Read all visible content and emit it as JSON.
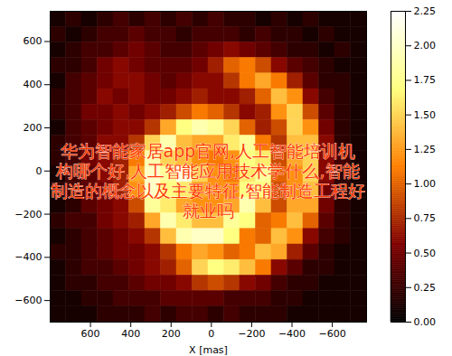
{
  "chart_data": {
    "type": "heatmap",
    "xlabel": "X [mas]",
    "xlim": [
      800,
      -770
    ],
    "ylim": [
      -700,
      740
    ],
    "xticks": [
      600,
      400,
      200,
      0,
      -200,
      -400,
      -600
    ],
    "yticks": [
      -600,
      -400,
      -200,
      0,
      200,
      400,
      600
    ],
    "cells": [
      [
        0.1,
        0.2,
        0.1,
        0.2,
        0.3,
        0.2,
        0.3,
        0.2,
        0.3,
        0.2,
        0.3,
        0.2,
        0.2,
        0.1,
        0.2,
        0.1,
        0.2,
        0.1,
        0.1,
        0.1
      ],
      [
        0.2,
        0.1,
        0.2,
        0.3,
        0.3,
        0.4,
        0.3,
        0.3,
        0.2,
        0.3,
        0.3,
        0.3,
        0.2,
        0.3,
        0.2,
        0.2,
        0.1,
        0.2,
        0.1,
        0.1
      ],
      [
        0.1,
        0.2,
        0.3,
        0.3,
        0.4,
        0.5,
        0.4,
        0.3,
        0.3,
        0.4,
        0.5,
        0.6,
        0.5,
        0.4,
        0.3,
        0.2,
        0.2,
        0.1,
        0.2,
        0.1
      ],
      [
        0.2,
        0.2,
        0.3,
        0.5,
        0.6,
        0.5,
        0.4,
        0.4,
        0.4,
        0.5,
        0.7,
        1.0,
        1.1,
        0.9,
        0.6,
        0.4,
        0.3,
        0.2,
        0.1,
        0.1
      ],
      [
        0.1,
        0.3,
        0.4,
        0.5,
        0.6,
        0.6,
        0.5,
        0.4,
        0.5,
        0.6,
        0.6,
        0.8,
        1.1,
        1.3,
        1.1,
        0.7,
        0.4,
        0.2,
        0.2,
        0.1
      ],
      [
        0.2,
        0.3,
        0.4,
        0.6,
        0.5,
        0.6,
        0.5,
        0.5,
        0.6,
        0.7,
        0.6,
        0.6,
        0.7,
        1.0,
        1.4,
        1.2,
        0.6,
        0.3,
        0.2,
        0.1
      ],
      [
        0.2,
        0.3,
        0.5,
        0.5,
        0.6,
        0.5,
        0.6,
        0.7,
        0.9,
        1.1,
        1.0,
        0.8,
        0.6,
        0.7,
        1.2,
        1.5,
        0.9,
        0.4,
        0.2,
        0.1
      ],
      [
        0.1,
        0.3,
        0.4,
        0.5,
        0.6,
        0.6,
        0.8,
        1.3,
        1.7,
        1.9,
        1.8,
        1.5,
        1.0,
        0.7,
        0.9,
        1.5,
        1.2,
        0.5,
        0.2,
        0.1
      ],
      [
        0.2,
        0.3,
        0.4,
        0.6,
        0.6,
        0.8,
        1.5,
        1.9,
        1.4,
        1.3,
        1.3,
        1.6,
        1.8,
        1.1,
        0.8,
        1.4,
        1.4,
        0.6,
        0.2,
        0.1
      ],
      [
        0.2,
        0.3,
        0.5,
        0.6,
        0.7,
        1.1,
        1.9,
        1.5,
        1.4,
        1.2,
        1.1,
        1.2,
        1.7,
        1.6,
        0.9,
        1.3,
        1.5,
        0.6,
        0.3,
        0.1
      ],
      [
        0.1,
        0.3,
        0.4,
        0.6,
        0.7,
        1.3,
        2.0,
        1.8,
        2.1,
        1.5,
        1.2,
        1.1,
        1.6,
        1.8,
        1.0,
        1.2,
        1.5,
        0.6,
        0.2,
        0.1
      ],
      [
        0.2,
        0.3,
        0.4,
        0.5,
        0.7,
        1.2,
        2.0,
        1.7,
        1.6,
        1.3,
        1.2,
        1.2,
        1.7,
        1.7,
        0.9,
        1.2,
        1.4,
        0.5,
        0.2,
        0.1
      ],
      [
        0.1,
        0.2,
        0.4,
        0.5,
        0.6,
        0.9,
        1.8,
        1.6,
        1.3,
        1.2,
        1.2,
        1.3,
        1.9,
        1.4,
        0.9,
        1.3,
        1.3,
        0.5,
        0.2,
        0.1
      ],
      [
        0.2,
        0.3,
        0.3,
        0.5,
        0.6,
        0.7,
        1.3,
        1.9,
        1.6,
        1.4,
        1.4,
        1.8,
        1.7,
        1.0,
        1.1,
        1.4,
        1.0,
        0.4,
        0.2,
        0.1
      ],
      [
        0.1,
        0.2,
        0.3,
        0.4,
        0.5,
        0.6,
        0.8,
        1.4,
        1.9,
        2.0,
        2.0,
        1.7,
        1.1,
        1.0,
        1.4,
        1.2,
        0.6,
        0.3,
        0.2,
        0.1
      ],
      [
        0.2,
        0.2,
        0.3,
        0.4,
        0.5,
        0.5,
        0.6,
        0.8,
        1.1,
        1.3,
        1.2,
        1.0,
        1.1,
        1.4,
        1.3,
        0.7,
        0.4,
        0.2,
        0.1,
        0.1
      ],
      [
        0.1,
        0.2,
        0.3,
        0.3,
        0.4,
        0.5,
        0.6,
        0.7,
        1.0,
        1.5,
        1.7,
        1.6,
        1.4,
        1.1,
        0.6,
        0.4,
        0.2,
        0.2,
        0.1,
        0.1
      ],
      [
        0.1,
        0.2,
        0.2,
        0.3,
        0.3,
        0.4,
        0.5,
        0.5,
        0.6,
        0.8,
        0.9,
        0.8,
        0.6,
        0.5,
        0.3,
        0.2,
        0.2,
        0.1,
        0.1,
        0.1
      ],
      [
        0.1,
        0.1,
        0.2,
        0.2,
        0.3,
        0.3,
        0.3,
        0.4,
        0.4,
        0.4,
        0.4,
        0.3,
        0.3,
        0.3,
        0.2,
        0.2,
        0.1,
        0.1,
        0.1,
        0.1
      ],
      [
        0.1,
        0.1,
        0.1,
        0.2,
        0.2,
        0.2,
        0.3,
        0.2,
        0.3,
        0.3,
        0.2,
        0.3,
        0.2,
        0.2,
        0.2,
        0.1,
        0.1,
        0.1,
        0.1,
        0.1
      ]
    ],
    "colorbar": {
      "range": [
        0,
        2.25
      ],
      "ticks": [
        {
          "value": 0,
          "label": "0.00"
        },
        {
          "value": 0.25,
          "label": "0.25"
        },
        {
          "value": 0.5,
          "label": "0.50"
        },
        {
          "value": 0.75,
          "label": "0.75"
        },
        {
          "value": 1,
          "label": "1.00"
        },
        {
          "value": 1.25,
          "label": "1.25"
        },
        {
          "value": 1.5,
          "label": "1.50"
        },
        {
          "value": 1.75,
          "label": "1.75"
        },
        {
          "value": 2,
          "label": "2.00"
        },
        {
          "value": 2.25,
          "label": "2.25"
        }
      ]
    },
    "annotations": [
      "华为智能家居app官网,人工智能培训机",
      "构哪个好,人工智能应用技术学什么,智能",
      "制造的概念以及主要特征,智能制造工程好",
      "就业吗"
    ]
  }
}
